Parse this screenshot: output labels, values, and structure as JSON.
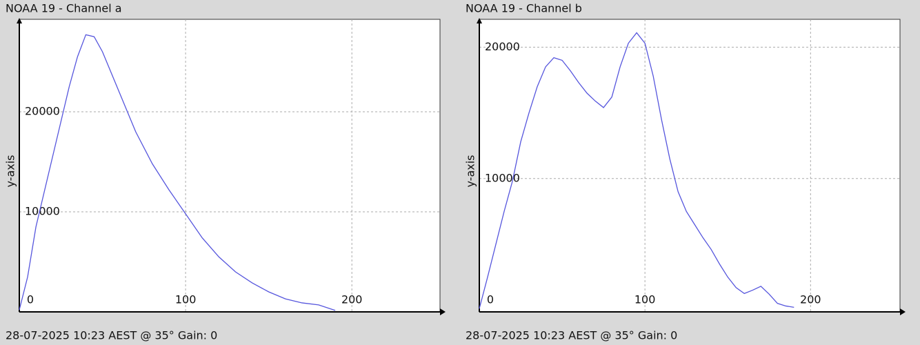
{
  "chart_data": [
    {
      "type": "line",
      "title": "NOAA 19 - Channel a",
      "y_label": "y-axis",
      "footer": "28-07-2025 10:23 AEST @ 35° Gain: 0",
      "x": [
        0,
        5,
        10,
        15,
        20,
        25,
        30,
        35,
        40,
        45,
        50,
        60,
        70,
        80,
        90,
        100,
        110,
        120,
        130,
        140,
        150,
        160,
        170,
        180,
        190
      ],
      "series": [
        {
          "color": "#5555dd",
          "values": [
            200,
            3500,
            8500,
            12000,
            15500,
            19000,
            22500,
            25500,
            27700,
            27500,
            26000,
            22000,
            18000,
            14800,
            12200,
            9800,
            7400,
            5500,
            4000,
            2900,
            2000,
            1300,
            900,
            700,
            150
          ]
        }
      ],
      "xlim": [
        0,
        253
      ],
      "ylim": [
        0,
        29240
      ],
      "xticks": [
        0,
        100,
        200
      ],
      "yticks": [
        10000,
        20000
      ],
      "grid": true
    },
    {
      "type": "line",
      "title": "NOAA 19 - Channel b",
      "y_label": "y-axis",
      "footer": "28-07-2025 10:23 AEST @ 35° Gain: 0",
      "x": [
        0,
        5,
        10,
        15,
        20,
        25,
        30,
        35,
        40,
        45,
        50,
        55,
        60,
        65,
        70,
        75,
        80,
        85,
        90,
        95,
        100,
        105,
        110,
        115,
        120,
        125,
        130,
        135,
        140,
        145,
        150,
        155,
        160,
        165,
        170,
        175,
        180,
        185,
        190
      ],
      "series": [
        {
          "color": "#5555dd",
          "values": [
            100,
            2500,
            5000,
            7500,
            9800,
            12800,
            15000,
            17000,
            18500,
            19200,
            19000,
            18200,
            17300,
            16500,
            15900,
            15400,
            16200,
            18500,
            20300,
            21100,
            20300,
            17800,
            14500,
            11500,
            9000,
            7500,
            6500,
            5500,
            4600,
            3500,
            2500,
            1700,
            1250,
            1500,
            1800,
            1200,
            500,
            300,
            200
          ]
        }
      ],
      "xlim": [
        0,
        254
      ],
      "ylim": [
        -150,
        22120
      ],
      "xticks": [
        0,
        100,
        200
      ],
      "yticks": [
        10000,
        20000
      ],
      "grid": true
    }
  ]
}
